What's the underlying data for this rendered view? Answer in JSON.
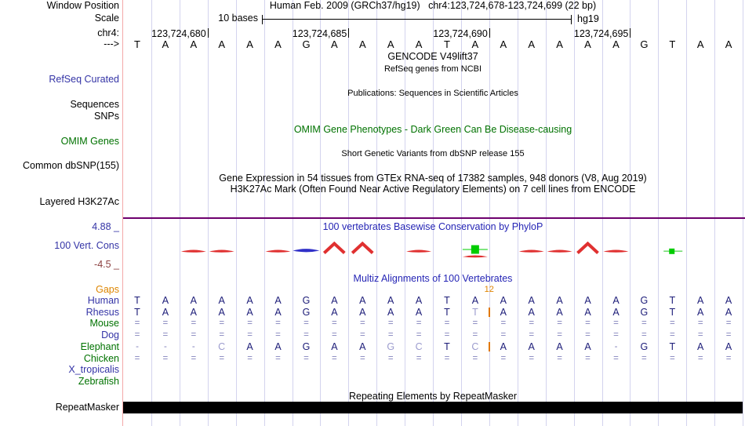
{
  "header": {
    "title": "Human Feb. 2009 (GRCh37/hg19)   chr4:123,724,678-123,724,699 (22 bp)",
    "scale_label": "10 bases",
    "assembly": "hg19",
    "row_labels": {
      "window_position": "Window Position",
      "scale": "Scale",
      "chrom": "chr4:",
      "strand": "--->"
    }
  },
  "ruler": {
    "ticks": [
      {
        "label": "123,724,680",
        "col": 3
      },
      {
        "label": "123,724,685",
        "col": 8
      },
      {
        "label": "123,724,690",
        "col": 13
      },
      {
        "label": "123,724,695",
        "col": 18
      }
    ]
  },
  "sequence": [
    "T",
    "A",
    "A",
    "A",
    "A",
    "A",
    "G",
    "A",
    "A",
    "A",
    "A",
    "T",
    "A",
    "A",
    "A",
    "A",
    "A",
    "A",
    "G",
    "T",
    "A",
    "A"
  ],
  "tracks": {
    "gencode": {
      "title": "GENCODE V49lift37",
      "subtitle": "RefSeq genes from NCBI",
      "left_label": "RefSeq Curated"
    },
    "publications": {
      "title": "Publications: Sequences in Scientific Articles",
      "left_label_1": "Sequences",
      "left_label_2": "SNPs"
    },
    "omim": {
      "title": "OMIM Gene Phenotypes - Dark Green Can Be Disease-causing",
      "left_label": "OMIM Genes",
      "title_color": "#007200"
    },
    "dbsnp": {
      "title": "Short Genetic Variants from dbSNP release 155",
      "left_label": "Common dbSNP(155)"
    },
    "gtex": {
      "title": "Gene Expression in 54 tissues from GTEx RNA-seq of 17382 samples, 948 donors (V8, Aug 2019)"
    },
    "h3k27ac": {
      "title": "H3K27Ac Mark (Often Found Near Active Regulatory Elements) on 7 cell lines from ENCODE",
      "left_label": "Layered H3K27Ac"
    },
    "conservation": {
      "title": "100 vertebrates Basewise Conservation by PhyloP",
      "left_label": "100 Vert. Cons",
      "max_label": "4.88 _",
      "min_label": "-4.5 _",
      "positive_color": "#E03030",
      "negative_color": "#3030C8",
      "insert_color": "#00CC00",
      "shapes": [
        {
          "type": "arc-red",
          "col": 3
        },
        {
          "type": "arc-red",
          "col": 4
        },
        {
          "type": "arc-red",
          "col": 6
        },
        {
          "type": "lens-blue",
          "col": 7
        },
        {
          "type": "peak-red",
          "col": 8
        },
        {
          "type": "peak-red",
          "col": 9
        },
        {
          "type": "arc-red",
          "col": 11
        },
        {
          "type": "green-ins",
          "col": 13
        },
        {
          "type": "arc-red",
          "col": 15
        },
        {
          "type": "arc-red",
          "col": 16
        },
        {
          "type": "peak-red",
          "col": 17
        },
        {
          "type": "arc-red",
          "col": 18
        },
        {
          "type": "green-dash",
          "col": 20
        }
      ]
    },
    "multiz": {
      "title": "Multiz Alignments of 100 Vertebrates",
      "gaps_label": "Gaps",
      "gap_count": "12",
      "rows": [
        {
          "name": "Human",
          "color": "blue",
          "cells": [
            "T",
            "A",
            "A",
            "A",
            "A",
            "A",
            "G",
            "A",
            "A",
            "A",
            "A",
            "T",
            "A",
            "A",
            "A",
            "A",
            "A",
            "A",
            "G",
            "T",
            "A",
            "A"
          ]
        },
        {
          "name": "Rhesus",
          "color": "blue",
          "gap_after": 13,
          "cells": [
            "T",
            "A",
            "A",
            "A",
            "A",
            "A",
            "G",
            "A",
            "A",
            "A",
            "A",
            "T",
            "t",
            "A",
            "A",
            "A",
            "A",
            "A",
            "G",
            "T",
            "A",
            "A"
          ]
        },
        {
          "name": "Mouse",
          "color": "green",
          "cells": [
            "=",
            "=",
            "=",
            "=",
            "=",
            "=",
            "=",
            "=",
            "=",
            "=",
            "=",
            "=",
            "=",
            "=",
            "=",
            "=",
            "=",
            "=",
            "=",
            "=",
            "=",
            "="
          ]
        },
        {
          "name": "Dog",
          "color": "blue",
          "cells": [
            "=",
            "=",
            "=",
            "=",
            "=",
            "=",
            "=",
            "=",
            "=",
            "=",
            "=",
            "=",
            "=",
            "=",
            "=",
            "=",
            "=",
            "=",
            "=",
            "=",
            "=",
            "="
          ]
        },
        {
          "name": "Elephant",
          "color": "green",
          "gap_after": 13,
          "cells": [
            "-",
            "-",
            "-",
            "c",
            "A",
            "A",
            "G",
            "A",
            "A",
            "g",
            "c",
            "T",
            "c",
            "A",
            "A",
            "A",
            "A",
            "-",
            "G",
            "T",
            "A",
            "A"
          ]
        },
        {
          "name": "Chicken",
          "color": "green",
          "cells": [
            "=",
            "=",
            "=",
            "=",
            "=",
            "=",
            "=",
            "=",
            "=",
            "=",
            "=",
            "=",
            "=",
            "=",
            "=",
            "=",
            "=",
            "=",
            "=",
            "=",
            "=",
            "="
          ]
        },
        {
          "name": "X_tropicalis",
          "color": "blue",
          "cells": [
            "",
            "",
            "",
            "",
            "",
            "",
            "",
            "",
            "",
            "",
            "",
            "",
            "",
            "",
            "",
            "",
            "",
            "",
            "",
            "",
            "",
            ""
          ]
        },
        {
          "name": "Zebrafish",
          "color": "green",
          "cells": [
            "",
            "",
            "",
            "",
            "",
            "",
            "",
            "",
            "",
            "",
            "",
            "",
            "",
            "",
            "",
            "",
            "",
            "",
            "",
            "",
            "",
            ""
          ]
        }
      ]
    },
    "repeatmasker": {
      "title": "Repeating Elements by RepeatMasker",
      "left_label": "RepeatMasker"
    }
  }
}
